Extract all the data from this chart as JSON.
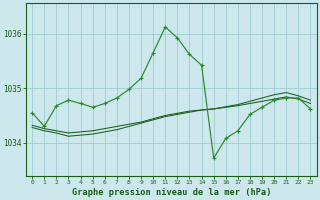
{
  "title": "Graphe pression niveau de la mer (hPa)",
  "background_color": "#cde8ed",
  "grid_color": "#9ecdd6",
  "line_color_dark": "#1a5c1a",
  "line_color_bright": "#2a8a2a",
  "xlim": [
    -0.5,
    23.5
  ],
  "ylim": [
    1033.4,
    1036.55
  ],
  "yticks": [
    1034,
    1035,
    1036
  ],
  "xticks": [
    0,
    1,
    2,
    3,
    4,
    5,
    6,
    7,
    8,
    9,
    10,
    11,
    12,
    13,
    14,
    15,
    16,
    17,
    18,
    19,
    20,
    21,
    22,
    23
  ],
  "series1_x": [
    0,
    1,
    2,
    3,
    4,
    5,
    6,
    7,
    8,
    9,
    10,
    11,
    12,
    13,
    14,
    15,
    16,
    17,
    18,
    19,
    20,
    21,
    22,
    23
  ],
  "series1_y": [
    1034.55,
    1034.3,
    1034.68,
    1034.78,
    1034.72,
    1034.65,
    1034.72,
    1034.82,
    1034.98,
    1035.18,
    1035.65,
    1036.12,
    1035.92,
    1035.62,
    1035.42,
    1033.72,
    1034.08,
    1034.22,
    1034.52,
    1034.65,
    1034.78,
    1034.82,
    1034.82,
    1034.62
  ],
  "series2_x": [
    0,
    1,
    2,
    3,
    4,
    5,
    6,
    7,
    8,
    9,
    10,
    11,
    12,
    13,
    14,
    15,
    16,
    17,
    18,
    19,
    20,
    21,
    22,
    23
  ],
  "series2_y": [
    1034.28,
    1034.22,
    1034.18,
    1034.12,
    1034.14,
    1034.16,
    1034.2,
    1034.24,
    1034.3,
    1034.36,
    1034.42,
    1034.48,
    1034.52,
    1034.56,
    1034.6,
    1034.62,
    1034.66,
    1034.7,
    1034.76,
    1034.82,
    1034.88,
    1034.92,
    1034.86,
    1034.78
  ],
  "series3_x": [
    0,
    1,
    2,
    3,
    4,
    5,
    6,
    7,
    8,
    9,
    10,
    11,
    12,
    13,
    14,
    15,
    16,
    17,
    18,
    19,
    20,
    21,
    22,
    23
  ],
  "series3_y": [
    1034.32,
    1034.26,
    1034.22,
    1034.18,
    1034.2,
    1034.22,
    1034.26,
    1034.3,
    1034.34,
    1034.38,
    1034.44,
    1034.5,
    1034.54,
    1034.58,
    1034.6,
    1034.62,
    1034.65,
    1034.68,
    1034.72,
    1034.76,
    1034.8,
    1034.84,
    1034.8,
    1034.72
  ],
  "ylabel_fontsize": 6,
  "xlabel_fontsize": 5.5,
  "title_fontsize": 6.2
}
